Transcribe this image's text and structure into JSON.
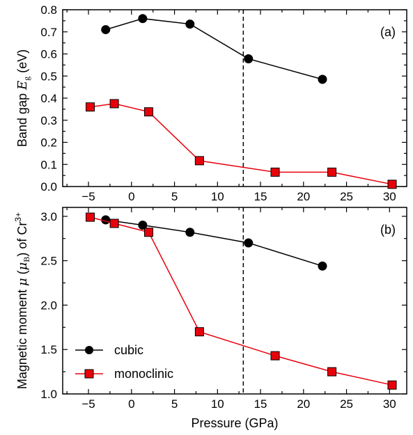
{
  "chart_data": [
    {
      "type": "line",
      "panel_label": "(a)",
      "xlabel": "",
      "ylabel": "Band gap E_g (eV)",
      "ylabel_parts": {
        "prefix": "Band gap ",
        "symbol": "E",
        "subscript": "g",
        "suffix": " (eV)"
      },
      "xlim": [
        -8,
        32
      ],
      "ylim": [
        0,
        0.8
      ],
      "xticks": [
        -5,
        0,
        5,
        10,
        15,
        20,
        25,
        30
      ],
      "yticks": [
        0.0,
        0.1,
        0.2,
        0.3,
        0.4,
        0.5,
        0.6,
        0.7,
        0.8
      ],
      "ytick_labels": [
        "0.0",
        "0.1",
        "0.2",
        "0.3",
        "0.4",
        "0.5",
        "0.6",
        "0.7",
        "0.8"
      ],
      "vline_x": 13,
      "series": [
        {
          "name": "cubic",
          "marker": "circle",
          "color": "#000000",
          "x": [
            -3.0,
            1.3,
            6.8,
            13.6,
            22.2
          ],
          "y": [
            0.71,
            0.76,
            0.735,
            0.578,
            0.485
          ]
        },
        {
          "name": "monoclinic",
          "marker": "square",
          "color": "#e8000b",
          "x": [
            -4.8,
            -2.0,
            2.0,
            7.9,
            16.7,
            23.3,
            30.3
          ],
          "y": [
            0.36,
            0.375,
            0.338,
            0.117,
            0.065,
            0.065,
            0.01
          ]
        }
      ]
    },
    {
      "type": "line",
      "panel_label": "(b)",
      "xlabel": "Pressure (GPa)",
      "ylabel": "Magnetic moment μ (μB) of Cr3+",
      "ylabel_parts": {
        "prefix": "Magnetic moment ",
        "symbol": "μ",
        "paren_open": " (",
        "unit_symbol": "μ",
        "unit_sub": "B",
        "paren_close": ") of Cr",
        "superscript": "3+"
      },
      "xlim": [
        -8,
        32
      ],
      "ylim": [
        1.0,
        3.1
      ],
      "xticks": [
        -5,
        0,
        5,
        10,
        15,
        20,
        25,
        30
      ],
      "yticks": [
        1.0,
        1.5,
        2.0,
        2.5,
        3.0
      ],
      "ytick_labels": [
        "1.0",
        "1.5",
        "2.0",
        "2.5",
        "3.0"
      ],
      "vline_x": 13,
      "legend": {
        "placement": "lower-left",
        "entries": [
          {
            "name": "cubic",
            "marker": "circle",
            "color": "#000000"
          },
          {
            "name": "monoclinic",
            "marker": "square",
            "color": "#e8000b"
          }
        ]
      },
      "series": [
        {
          "name": "cubic",
          "marker": "circle",
          "color": "#000000",
          "x": [
            -3.0,
            1.3,
            6.8,
            13.6,
            22.2
          ],
          "y": [
            2.96,
            2.9,
            2.82,
            2.7,
            2.44
          ]
        },
        {
          "name": "monoclinic",
          "marker": "square",
          "color": "#e8000b",
          "x": [
            -4.8,
            -2.0,
            2.0,
            7.9,
            16.7,
            23.3,
            30.3
          ],
          "y": [
            2.99,
            2.92,
            2.82,
            1.7,
            1.43,
            1.25,
            1.1
          ]
        }
      ]
    }
  ]
}
